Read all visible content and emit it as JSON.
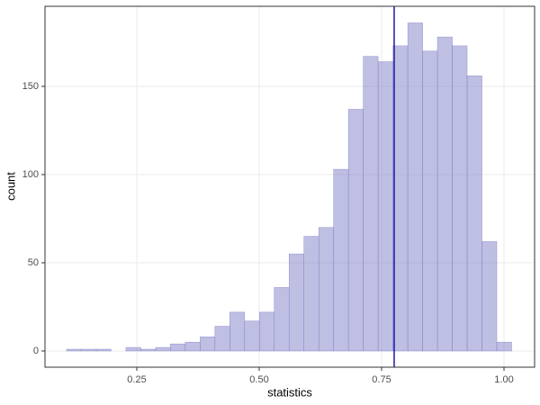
{
  "chart_data": {
    "type": "histogram",
    "x_label": "statistics",
    "y_label": "count",
    "bins": [
      0.1066,
      0.1369,
      0.1672,
      0.1975,
      0.2278,
      0.2581,
      0.2884,
      0.3187,
      0.349,
      0.3793,
      0.4096,
      0.4399,
      0.4702,
      0.5005,
      0.5308,
      0.5611,
      0.5914,
      0.6217,
      0.652,
      0.6823,
      0.7126,
      0.7429,
      0.7732,
      0.8035,
      0.8338,
      0.8641,
      0.8944,
      0.9247,
      0.955,
      0.9853,
      1.0156
    ],
    "counts": [
      1,
      1,
      1,
      0,
      2,
      1,
      2,
      4,
      5,
      8,
      14,
      22,
      17,
      22,
      36,
      55,
      65,
      70,
      103,
      137,
      167,
      164,
      173,
      186,
      170,
      178,
      173,
      156,
      62,
      5
    ],
    "color": "#8080c8",
    "vline": 0.7757,
    "vline_color": "#1a1aa6",
    "xlim": [
      0.0625,
      1.0625
    ],
    "ylim": [
      -9.2,
      195.4
    ],
    "xticks": [
      0.25,
      {
        "value": 0.5,
        "label": "0.50"
      },
      0.75,
      {
        "value": 1.0,
        "label": "1.00"
      }
    ],
    "yticks": [
      0,
      50,
      100,
      150
    ],
    "grid": true
  }
}
